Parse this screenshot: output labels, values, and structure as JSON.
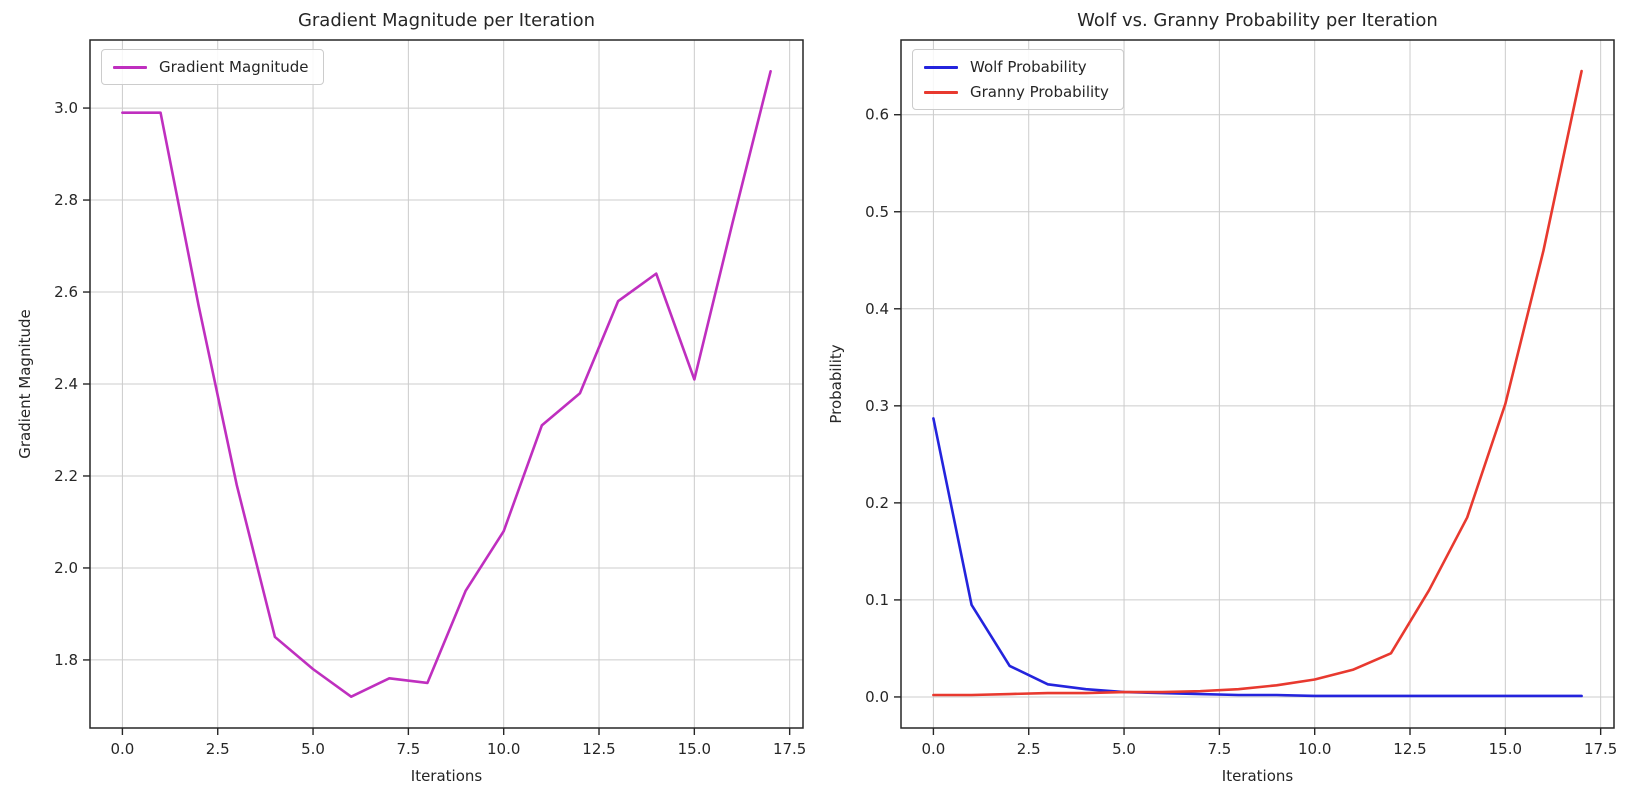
{
  "figure": {
    "background_color": "#ffffff",
    "text_color": "#262626",
    "grid_color": "#cccccc",
    "spine_color": "#262626"
  },
  "chart_data": [
    {
      "type": "line",
      "title": "Gradient Magnitude per Iteration",
      "xlabel": "Iterations",
      "ylabel": "Gradient Magnitude",
      "x": [
        0,
        1,
        2,
        3,
        4,
        5,
        6,
        7,
        8,
        9,
        10,
        11,
        12,
        13,
        14,
        15,
        16,
        17
      ],
      "series": [
        {
          "name": "Gradient Magnitude",
          "color": "#bf2fbf",
          "values": [
            2.99,
            2.99,
            2.57,
            2.18,
            1.85,
            1.78,
            1.72,
            1.76,
            1.75,
            1.95,
            2.08,
            2.31,
            2.38,
            2.58,
            2.64,
            2.41,
            2.75,
            3.08
          ]
        }
      ],
      "xlim": [
        -0.85,
        17.85
      ],
      "ylim": [
        1.652,
        3.148
      ],
      "xtick_values": [
        0,
        2.5,
        5,
        7.5,
        10,
        12.5,
        15,
        17.5
      ],
      "xtick_labels": [
        "0.0",
        "2.5",
        "5.0",
        "7.5",
        "10.0",
        "12.5",
        "15.0",
        "17.5"
      ],
      "ytick_values": [
        1.8,
        2.0,
        2.2,
        2.4,
        2.6,
        2.8,
        3.0
      ],
      "ytick_labels": [
        "1.8",
        "2.0",
        "2.2",
        "2.4",
        "2.6",
        "2.8",
        "3.0"
      ],
      "grid": true,
      "legend_position": "upper left"
    },
    {
      "type": "line",
      "title": "Wolf vs. Granny Probability per Iteration",
      "xlabel": "Iterations",
      "ylabel": "Probability",
      "x": [
        0,
        1,
        2,
        3,
        4,
        5,
        6,
        7,
        8,
        9,
        10,
        11,
        12,
        13,
        14,
        15,
        16,
        17
      ],
      "series": [
        {
          "name": "Wolf Probability",
          "color": "#2424dd",
          "values": [
            0.287,
            0.095,
            0.032,
            0.013,
            0.008,
            0.005,
            0.004,
            0.003,
            0.002,
            0.002,
            0.001,
            0.001,
            0.001,
            0.001,
            0.001,
            0.001,
            0.001,
            0.001
          ]
        },
        {
          "name": "Granny Probability",
          "color": "#e8392f",
          "values": [
            0.002,
            0.002,
            0.003,
            0.004,
            0.004,
            0.005,
            0.005,
            0.006,
            0.008,
            0.012,
            0.018,
            0.028,
            0.045,
            0.11,
            0.185,
            0.302,
            0.46,
            0.645
          ]
        }
      ],
      "xlim": [
        -0.85,
        17.85
      ],
      "ylim": [
        -0.032,
        0.677
      ],
      "xtick_values": [
        0,
        2.5,
        5,
        7.5,
        10,
        12.5,
        15,
        17.5
      ],
      "xtick_labels": [
        "0.0",
        "2.5",
        "5.0",
        "7.5",
        "10.0",
        "12.5",
        "15.0",
        "17.5"
      ],
      "ytick_values": [
        0.0,
        0.1,
        0.2,
        0.3,
        0.4,
        0.5,
        0.6
      ],
      "ytick_labels": [
        "0.0",
        "0.1",
        "0.2",
        "0.3",
        "0.4",
        "0.5",
        "0.6"
      ],
      "grid": true,
      "legend_position": "upper left"
    }
  ]
}
